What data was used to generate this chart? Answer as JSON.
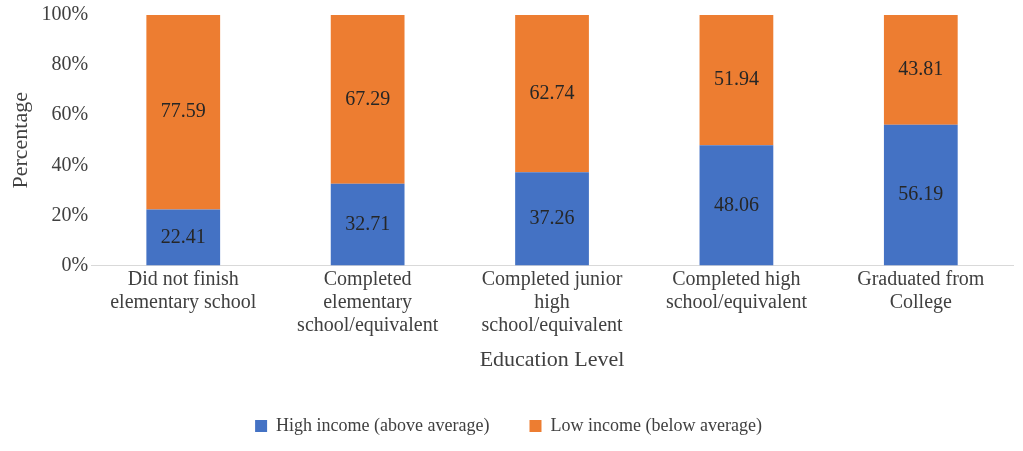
{
  "chart_data": {
    "type": "bar",
    "stacked": true,
    "xlabel": "Education Level",
    "ylabel": "Percentage",
    "categories": [
      "Did not finish elementary school",
      "Completed elementary school/equivalent",
      "Completed junior high school/equivalent",
      "Completed high school/equivalent",
      "Graduated from College"
    ],
    "series": [
      {
        "name": "High income (above average)",
        "color": "#4472c4",
        "values": [
          22.41,
          32.71,
          37.26,
          48.06,
          56.19
        ]
      },
      {
        "name": "Low income (below average)",
        "color": "#ed7d31",
        "values": [
          77.59,
          67.29,
          62.74,
          51.94,
          43.81
        ]
      }
    ],
    "ylim": [
      0,
      100
    ],
    "yticks": [
      {
        "value": 0,
        "label": "0%"
      },
      {
        "value": 20,
        "label": "20%"
      },
      {
        "value": 40,
        "label": "40%"
      },
      {
        "value": 60,
        "label": "60%"
      },
      {
        "value": 80,
        "label": "80%"
      },
      {
        "value": 100,
        "label": "100%"
      }
    ],
    "grid": false,
    "legend": "bottom",
    "data_labels": true
  }
}
